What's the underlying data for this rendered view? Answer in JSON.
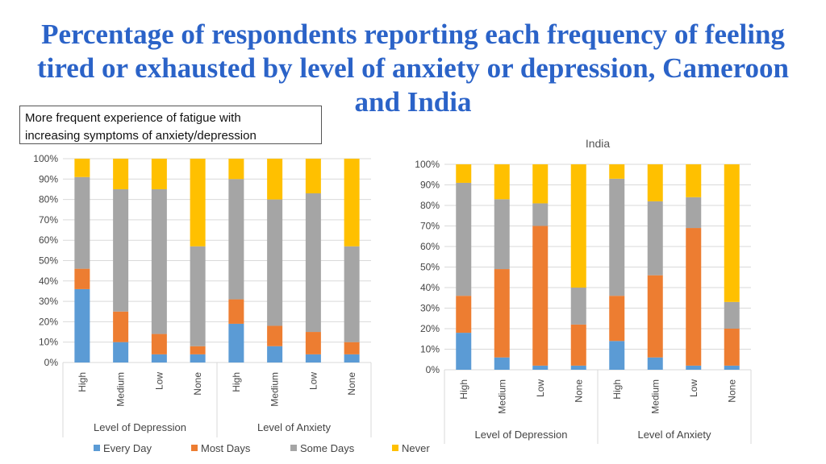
{
  "title": "Percentage of respondents reporting each frequency of feeling tired or exhausted by level of anxiety or depression, Cameroon and India",
  "note": {
    "line1": "More frequent experience of fatigue with",
    "line2": "increasing symptoms of anxiety/depression"
  },
  "colors": {
    "Every Day": "#5b9bd5",
    "Most Days": "#ed7d31",
    "Some Days": "#a5a5a5",
    "Never": "#ffc000"
  },
  "legend": [
    "Every Day",
    "Most Days",
    "Some Days",
    "Never"
  ],
  "chart_data": [
    {
      "type": "bar",
      "stacked": true,
      "title": "",
      "categories": [
        "High",
        "Medium",
        "Low",
        "None",
        "High",
        "Medium",
        "Low",
        "None"
      ],
      "groups": [
        {
          "label": "Level of Depression",
          "categories": [
            "High",
            "Medium",
            "Low",
            "None"
          ]
        },
        {
          "label": "Level of Anxiety",
          "categories": [
            "High",
            "Medium",
            "Low",
            "None"
          ]
        }
      ],
      "yticks": [
        "0%",
        "10%",
        "20%",
        "30%",
        "40%",
        "50%",
        "60%",
        "70%",
        "80%",
        "90%",
        "100%"
      ],
      "ylim": [
        0,
        100
      ],
      "series": [
        {
          "name": "Every Day",
          "values": [
            36,
            10,
            4,
            4,
            19,
            8,
            4,
            4
          ]
        },
        {
          "name": "Most Days",
          "values": [
            10,
            15,
            10,
            4,
            12,
            10,
            11,
            6
          ]
        },
        {
          "name": "Some Days",
          "values": [
            45,
            60,
            71,
            49,
            59,
            62,
            68,
            47
          ]
        },
        {
          "name": "Never",
          "values": [
            9,
            15,
            15,
            43,
            10,
            20,
            17,
            43
          ]
        }
      ]
    },
    {
      "type": "bar",
      "stacked": true,
      "title": "India",
      "categories": [
        "High",
        "Medium",
        "Low",
        "None",
        "High",
        "Medium",
        "Low",
        "None"
      ],
      "groups": [
        {
          "label": "Level of Depression",
          "categories": [
            "High",
            "Medium",
            "Low",
            "None"
          ]
        },
        {
          "label": "Level of Anxiety",
          "categories": [
            "High",
            "Medium",
            "Low",
            "None"
          ]
        }
      ],
      "yticks": [
        "0%",
        "10%",
        "20%",
        "30%",
        "40%",
        "50%",
        "60%",
        "70%",
        "80%",
        "90%",
        "100%"
      ],
      "ylim": [
        0,
        100
      ],
      "series": [
        {
          "name": "Every Day",
          "values": [
            18,
            6,
            2,
            2,
            14,
            6,
            2,
            2
          ]
        },
        {
          "name": "Most Days",
          "values": [
            18,
            43,
            68,
            20,
            22,
            40,
            67,
            18
          ]
        },
        {
          "name": "Some Days",
          "values": [
            55,
            34,
            11,
            18,
            57,
            36,
            15,
            13
          ]
        },
        {
          "name": "Never",
          "values": [
            9,
            17,
            19,
            60,
            7,
            18,
            16,
            67
          ]
        }
      ]
    }
  ]
}
